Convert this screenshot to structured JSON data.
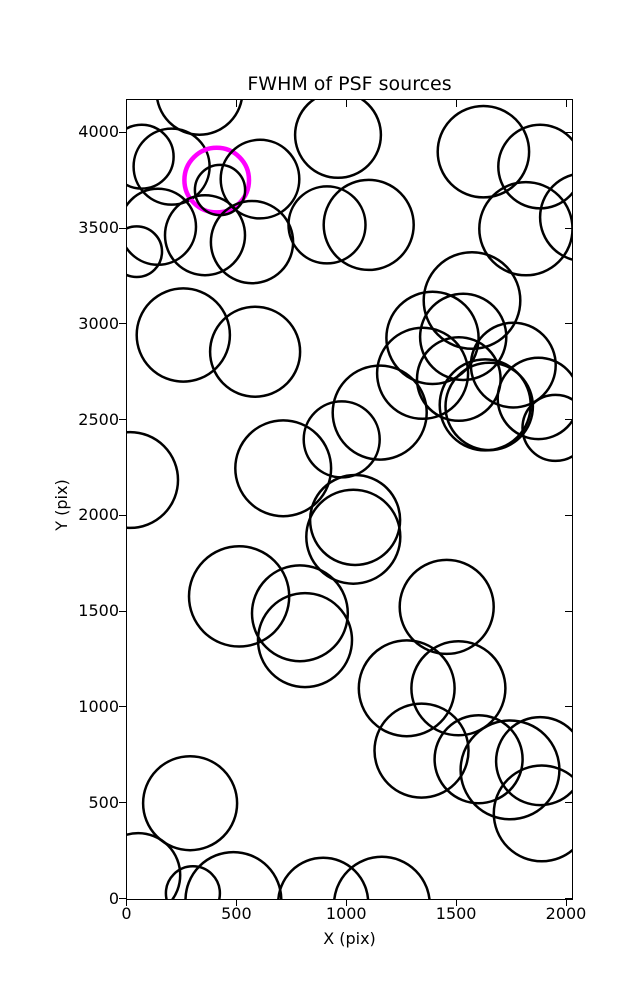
{
  "chart_data": {
    "type": "scatter",
    "title": "FWHM of PSF sources",
    "xlabel": "X (pix)",
    "ylabel": "Y (pix)",
    "xlim": [
      0,
      2025
    ],
    "ylim": [
      0,
      4172
    ],
    "xticks": [
      0,
      500,
      1000,
      1500,
      2000
    ],
    "yticks": [
      0,
      500,
      1000,
      1500,
      2000,
      2500,
      3000,
      3500,
      4000
    ],
    "grid": false,
    "legend": "none",
    "circle_color": "#000000",
    "highlight_color": "#ff00ff",
    "circle_linewidth": 2.5,
    "highlight_linewidth": 4.5,
    "sources": [
      {
        "x": 330,
        "y": 4215,
        "r": 195
      },
      {
        "x": 960,
        "y": 3990,
        "r": 195
      },
      {
        "x": 1622,
        "y": 3902,
        "r": 208
      },
      {
        "x": 67,
        "y": 3876,
        "r": 145
      },
      {
        "x": 203,
        "y": 3824,
        "r": 173
      },
      {
        "x": 1880,
        "y": 3824,
        "r": 190
      },
      {
        "x": 408,
        "y": 3754,
        "r": 147,
        "highlight": true
      },
      {
        "x": 605,
        "y": 3759,
        "r": 179
      },
      {
        "x": 423,
        "y": 3702,
        "r": 114
      },
      {
        "x": 2080,
        "y": 3560,
        "r": 200
      },
      {
        "x": 141,
        "y": 3510,
        "r": 173
      },
      {
        "x": 910,
        "y": 3520,
        "r": 175
      },
      {
        "x": 1100,
        "y": 3520,
        "r": 205
      },
      {
        "x": 1815,
        "y": 3500,
        "r": 212
      },
      {
        "x": 355,
        "y": 3466,
        "r": 182
      },
      {
        "x": 569,
        "y": 3430,
        "r": 187
      },
      {
        "x": 44,
        "y": 3380,
        "r": 115
      },
      {
        "x": 1570,
        "y": 3125,
        "r": 220
      },
      {
        "x": 256,
        "y": 2945,
        "r": 212
      },
      {
        "x": 1390,
        "y": 2930,
        "r": 210
      },
      {
        "x": 1530,
        "y": 2935,
        "r": 196
      },
      {
        "x": 583,
        "y": 2858,
        "r": 205
      },
      {
        "x": 1758,
        "y": 2788,
        "r": 193
      },
      {
        "x": 1345,
        "y": 2745,
        "r": 207
      },
      {
        "x": 1510,
        "y": 2715,
        "r": 190
      },
      {
        "x": 1630,
        "y": 2580,
        "r": 207
      },
      {
        "x": 1648,
        "y": 2572,
        "r": 199
      },
      {
        "x": 1872,
        "y": 2614,
        "r": 185
      },
      {
        "x": 1950,
        "y": 2460,
        "r": 150
      },
      {
        "x": 1150,
        "y": 2540,
        "r": 214
      },
      {
        "x": 977,
        "y": 2400,
        "r": 173
      },
      {
        "x": 711,
        "y": 2249,
        "r": 218
      },
      {
        "x": 14,
        "y": 2188,
        "r": 218
      },
      {
        "x": 1038,
        "y": 1979,
        "r": 205
      },
      {
        "x": 1030,
        "y": 1892,
        "r": 214
      },
      {
        "x": 510,
        "y": 1580,
        "r": 228
      },
      {
        "x": 1455,
        "y": 1525,
        "r": 214
      },
      {
        "x": 787,
        "y": 1492,
        "r": 218
      },
      {
        "x": 810,
        "y": 1352,
        "r": 214
      },
      {
        "x": 1273,
        "y": 1100,
        "r": 218
      },
      {
        "x": 1508,
        "y": 1100,
        "r": 214
      },
      {
        "x": 1340,
        "y": 775,
        "r": 214
      },
      {
        "x": 1600,
        "y": 730,
        "r": 200
      },
      {
        "x": 1743,
        "y": 674,
        "r": 225
      },
      {
        "x": 1880,
        "y": 720,
        "r": 200
      },
      {
        "x": 287,
        "y": 500,
        "r": 214
      },
      {
        "x": 1887,
        "y": 447,
        "r": 218
      },
      {
        "x": 51,
        "y": 125,
        "r": 191
      },
      {
        "x": 300,
        "y": 30,
        "r": 123
      },
      {
        "x": 484,
        "y": -5,
        "r": 218
      },
      {
        "x": 893,
        "y": -20,
        "r": 205
      },
      {
        "x": 1160,
        "y": -30,
        "r": 218
      }
    ]
  }
}
